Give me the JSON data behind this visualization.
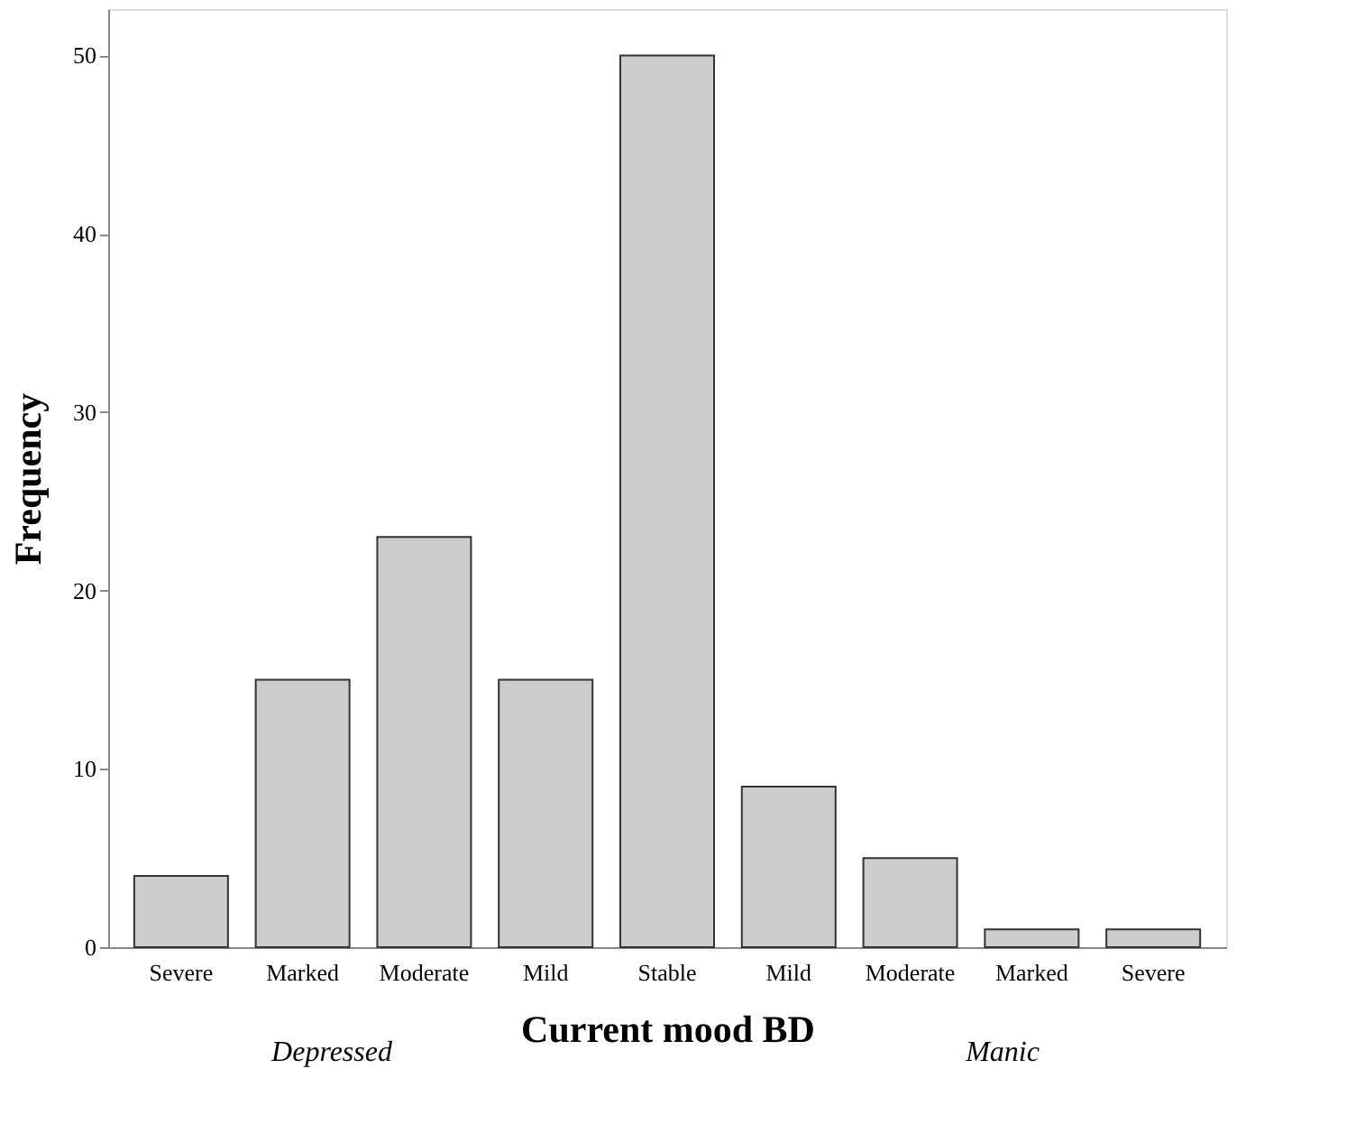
{
  "chart_data": {
    "type": "bar",
    "categories": [
      "Severe",
      "Marked",
      "Moderate",
      "Mild",
      "Stable",
      "Mild",
      "Moderate",
      "Marked",
      "Severe"
    ],
    "values": [
      4,
      15,
      23,
      15,
      50,
      9,
      5,
      1,
      1
    ],
    "color": "#cccccc",
    "xlabel": "Current mood BD",
    "ylabel": "Frequency",
    "annotations": [
      "Depressed",
      "Manic"
    ],
    "ylim": [
      0,
      52.6
    ],
    "yticks": [
      0,
      10,
      20,
      30,
      40,
      50
    ],
    "grid": false
  }
}
